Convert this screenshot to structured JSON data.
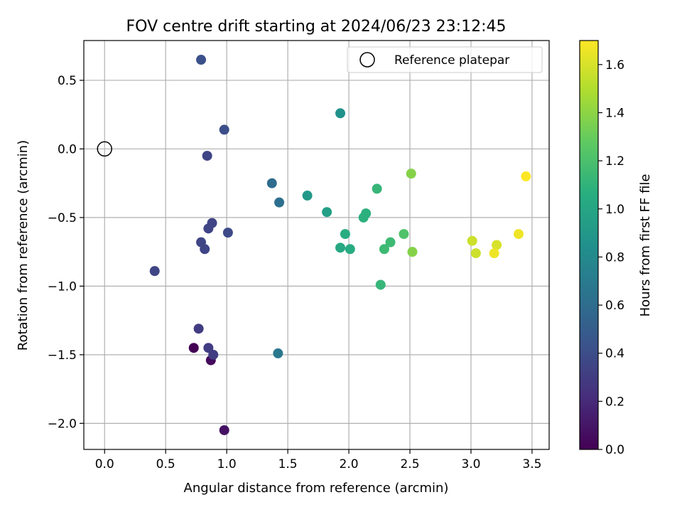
{
  "chart_data": {
    "type": "scatter",
    "title": "FOV centre drift starting at 2024/06/23 23:12:45",
    "xlabel": "Angular distance from reference (arcmin)",
    "ylabel": "Rotation from reference (arcmin)",
    "xlim": [
      -0.17,
      3.64
    ],
    "ylim": [
      -2.19,
      0.79
    ],
    "xticks": [
      0.0,
      0.5,
      1.0,
      1.5,
      2.0,
      2.5,
      3.0,
      3.5
    ],
    "xtick_labels": [
      "0.0",
      "0.5",
      "1.0",
      "1.5",
      "2.0",
      "2.5",
      "3.0",
      "3.5"
    ],
    "yticks": [
      -2.0,
      -1.5,
      -1.0,
      -0.5,
      0.0,
      0.5
    ],
    "ytick_labels": [
      "−2.0",
      "−1.5",
      "−1.0",
      "−0.5",
      "0.0",
      "0.5"
    ],
    "grid": true,
    "legend": {
      "placement": "top-right",
      "entries": [
        "Reference platepar"
      ]
    },
    "reference_point": {
      "x": 0.0,
      "y": 0.0
    },
    "colorbar": {
      "label": "Hours from first FF file",
      "colormap": "viridis",
      "range": [
        0.0,
        1.7
      ],
      "ticks": [
        0.0,
        0.2,
        0.4,
        0.6,
        0.8,
        1.0,
        1.2,
        1.4,
        1.6
      ],
      "tick_labels": [
        "0.0",
        "0.2",
        "0.4",
        "0.6",
        "0.8",
        "1.0",
        "1.2",
        "1.4",
        "1.6"
      ]
    },
    "points": [
      {
        "x": 0.73,
        "y": -1.45,
        "hours": 0.0
      },
      {
        "x": 0.87,
        "y": -1.54,
        "hours": 0.05
      },
      {
        "x": 0.98,
        "y": -2.05,
        "hours": 0.08
      },
      {
        "x": 0.77,
        "y": -1.31,
        "hours": 0.3
      },
      {
        "x": 0.85,
        "y": -1.45,
        "hours": 0.3
      },
      {
        "x": 0.89,
        "y": -1.5,
        "hours": 0.3
      },
      {
        "x": 0.41,
        "y": -0.89,
        "hours": 0.35
      },
      {
        "x": 0.79,
        "y": -0.68,
        "hours": 0.35
      },
      {
        "x": 0.82,
        "y": -0.73,
        "hours": 0.35
      },
      {
        "x": 0.85,
        "y": -0.58,
        "hours": 0.35
      },
      {
        "x": 0.88,
        "y": -0.54,
        "hours": 0.35
      },
      {
        "x": 0.84,
        "y": -0.05,
        "hours": 0.35
      },
      {
        "x": 1.01,
        "y": -0.61,
        "hours": 0.38
      },
      {
        "x": 0.98,
        "y": 0.14,
        "hours": 0.4
      },
      {
        "x": 0.79,
        "y": 0.65,
        "hours": 0.42
      },
      {
        "x": 1.37,
        "y": -0.25,
        "hours": 0.6
      },
      {
        "x": 1.43,
        "y": -0.39,
        "hours": 0.62
      },
      {
        "x": 1.42,
        "y": -1.49,
        "hours": 0.68
      },
      {
        "x": 1.93,
        "y": 0.26,
        "hours": 0.85
      },
      {
        "x": 1.66,
        "y": -0.34,
        "hours": 0.9
      },
      {
        "x": 1.82,
        "y": -0.46,
        "hours": 0.95
      },
      {
        "x": 1.93,
        "y": -0.72,
        "hours": 1.02
      },
      {
        "x": 1.97,
        "y": -0.62,
        "hours": 1.05
      },
      {
        "x": 2.01,
        "y": -0.73,
        "hours": 1.05
      },
      {
        "x": 2.12,
        "y": -0.5,
        "hours": 1.08
      },
      {
        "x": 2.14,
        "y": -0.47,
        "hours": 1.08
      },
      {
        "x": 2.23,
        "y": -0.29,
        "hours": 1.12
      },
      {
        "x": 2.26,
        "y": -0.99,
        "hours": 1.12
      },
      {
        "x": 2.29,
        "y": -0.73,
        "hours": 1.15
      },
      {
        "x": 2.34,
        "y": -0.68,
        "hours": 1.15
      },
      {
        "x": 2.45,
        "y": -0.62,
        "hours": 1.22
      },
      {
        "x": 2.51,
        "y": -0.18,
        "hours": 1.38
      },
      {
        "x": 2.52,
        "y": -0.75,
        "hours": 1.38
      },
      {
        "x": 3.01,
        "y": -0.67,
        "hours": 1.57
      },
      {
        "x": 3.04,
        "y": -0.76,
        "hours": 1.57
      },
      {
        "x": 3.21,
        "y": -0.7,
        "hours": 1.6
      },
      {
        "x": 3.19,
        "y": -0.76,
        "hours": 1.66
      },
      {
        "x": 3.39,
        "y": -0.62,
        "hours": 1.66
      },
      {
        "x": 3.45,
        "y": -0.2,
        "hours": 1.7
      }
    ]
  }
}
